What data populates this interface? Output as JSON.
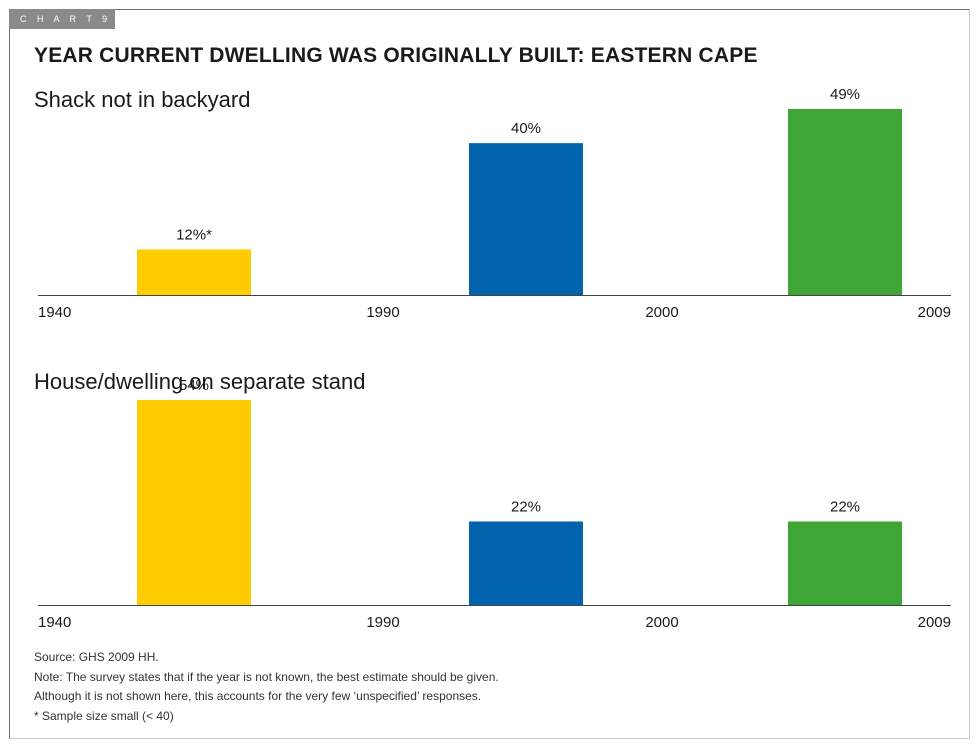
{
  "chart_label": "C H A R T   9",
  "title": "YEAR CURRENT DWELLING WAS ORIGINALLY BUILT: EASTERN CAPE",
  "colors": {
    "period_1": "#FFCC00",
    "period_2": "#0063AC",
    "period_3": "#3FA535"
  },
  "chart_data": [
    {
      "type": "bar",
      "title": "Shack not in backyard",
      "x_ticks": [
        "1940",
        "1990",
        "2000",
        "2009"
      ],
      "categories": [
        "1940–1990",
        "1990–2000",
        "2000–2009"
      ],
      "values": [
        12,
        40,
        49
      ],
      "data_labels": [
        "12%*",
        "40%",
        "49%"
      ],
      "ylim": [
        0,
        54
      ],
      "grid": false,
      "legend": "none"
    },
    {
      "type": "bar",
      "title": "House/dwelling on separate stand",
      "x_ticks": [
        "1940",
        "1990",
        "2000",
        "2009"
      ],
      "categories": [
        "1940–1990",
        "1990–2000",
        "2000–2009"
      ],
      "values": [
        54,
        22,
        22
      ],
      "data_labels": [
        "54%",
        "22%",
        "22%"
      ],
      "ylim": [
        0,
        54
      ],
      "grid": false,
      "legend": "none"
    }
  ],
  "notes": [
    "Source: GHS 2009 HH.",
    "Note: The survey states that if the year is not known, the best estimate should be given.",
    "Although it is not shown here, this accounts for the very few ‘unspecified’ responses.",
    "* Sample size small (< 40)"
  ]
}
